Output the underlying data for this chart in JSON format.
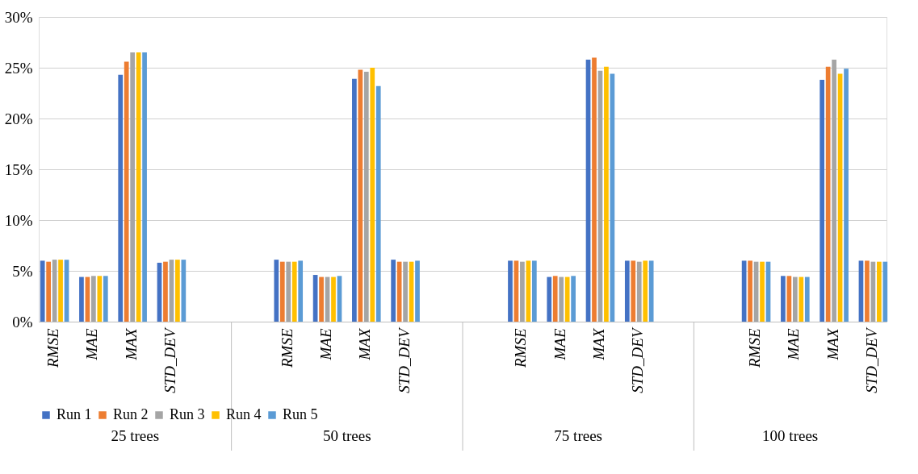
{
  "chart_data": {
    "type": "bar",
    "categories": [
      "RMSE",
      "MAE",
      "MAX",
      "STD_DEV",
      null,
      null,
      "RMSE",
      "MAE",
      "MAX",
      "STD_DEV",
      null,
      null,
      "RMSE",
      "MAE",
      "MAX",
      "STD_DEV",
      null,
      null,
      "RMSE",
      "MAE",
      "MAX",
      "STD_DEV"
    ],
    "series": [
      {
        "name": "Run 1",
        "color": "#4472c4",
        "values": [
          6.0,
          4.4,
          24.3,
          5.8,
          null,
          null,
          6.1,
          4.6,
          23.9,
          6.1,
          null,
          null,
          6.0,
          4.4,
          25.8,
          6.0,
          null,
          null,
          6.0,
          4.5,
          23.8,
          6.0
        ]
      },
      {
        "name": "Run 2",
        "color": "#ed7d31",
        "values": [
          5.9,
          4.4,
          25.6,
          5.9,
          null,
          null,
          5.9,
          4.4,
          24.8,
          5.9,
          null,
          null,
          6.0,
          4.5,
          26.0,
          6.0,
          null,
          null,
          6.0,
          4.5,
          25.1,
          6.0
        ]
      },
      {
        "name": "Run 3",
        "color": "#a5a5a5",
        "values": [
          6.1,
          4.5,
          26.5,
          6.1,
          null,
          null,
          5.9,
          4.4,
          24.6,
          5.9,
          null,
          null,
          5.9,
          4.4,
          24.7,
          5.9,
          null,
          null,
          5.9,
          4.4,
          25.8,
          5.9
        ]
      },
      {
        "name": "Run 4",
        "color": "#ffc000",
        "values": [
          6.1,
          4.5,
          26.5,
          6.1,
          null,
          null,
          5.9,
          4.4,
          25.0,
          5.9,
          null,
          null,
          6.0,
          4.4,
          25.1,
          6.0,
          null,
          null,
          5.9,
          4.4,
          24.4,
          5.9
        ]
      },
      {
        "name": "Run 5",
        "color": "#5b9bd5",
        "values": [
          6.1,
          4.5,
          26.5,
          6.1,
          null,
          null,
          6.0,
          4.5,
          23.2,
          6.0,
          null,
          null,
          6.0,
          4.5,
          24.4,
          6.0,
          null,
          null,
          5.9,
          4.4,
          24.9,
          5.9
        ]
      }
    ],
    "ylim": [
      0,
      30
    ],
    "yticks": [
      {
        "value": 0,
        "label": "0%"
      },
      {
        "value": 5,
        "label": "5%"
      },
      {
        "value": 10,
        "label": "10%"
      },
      {
        "value": 15,
        "label": "15%"
      },
      {
        "value": 20,
        "label": "20%"
      },
      {
        "value": 25,
        "label": "25%"
      },
      {
        "value": 30,
        "label": "30%"
      }
    ],
    "grid": "y",
    "legend": "bottom",
    "annotations": [
      "25 trees",
      "50 trees",
      "75 trees",
      "100 trees"
    ]
  }
}
